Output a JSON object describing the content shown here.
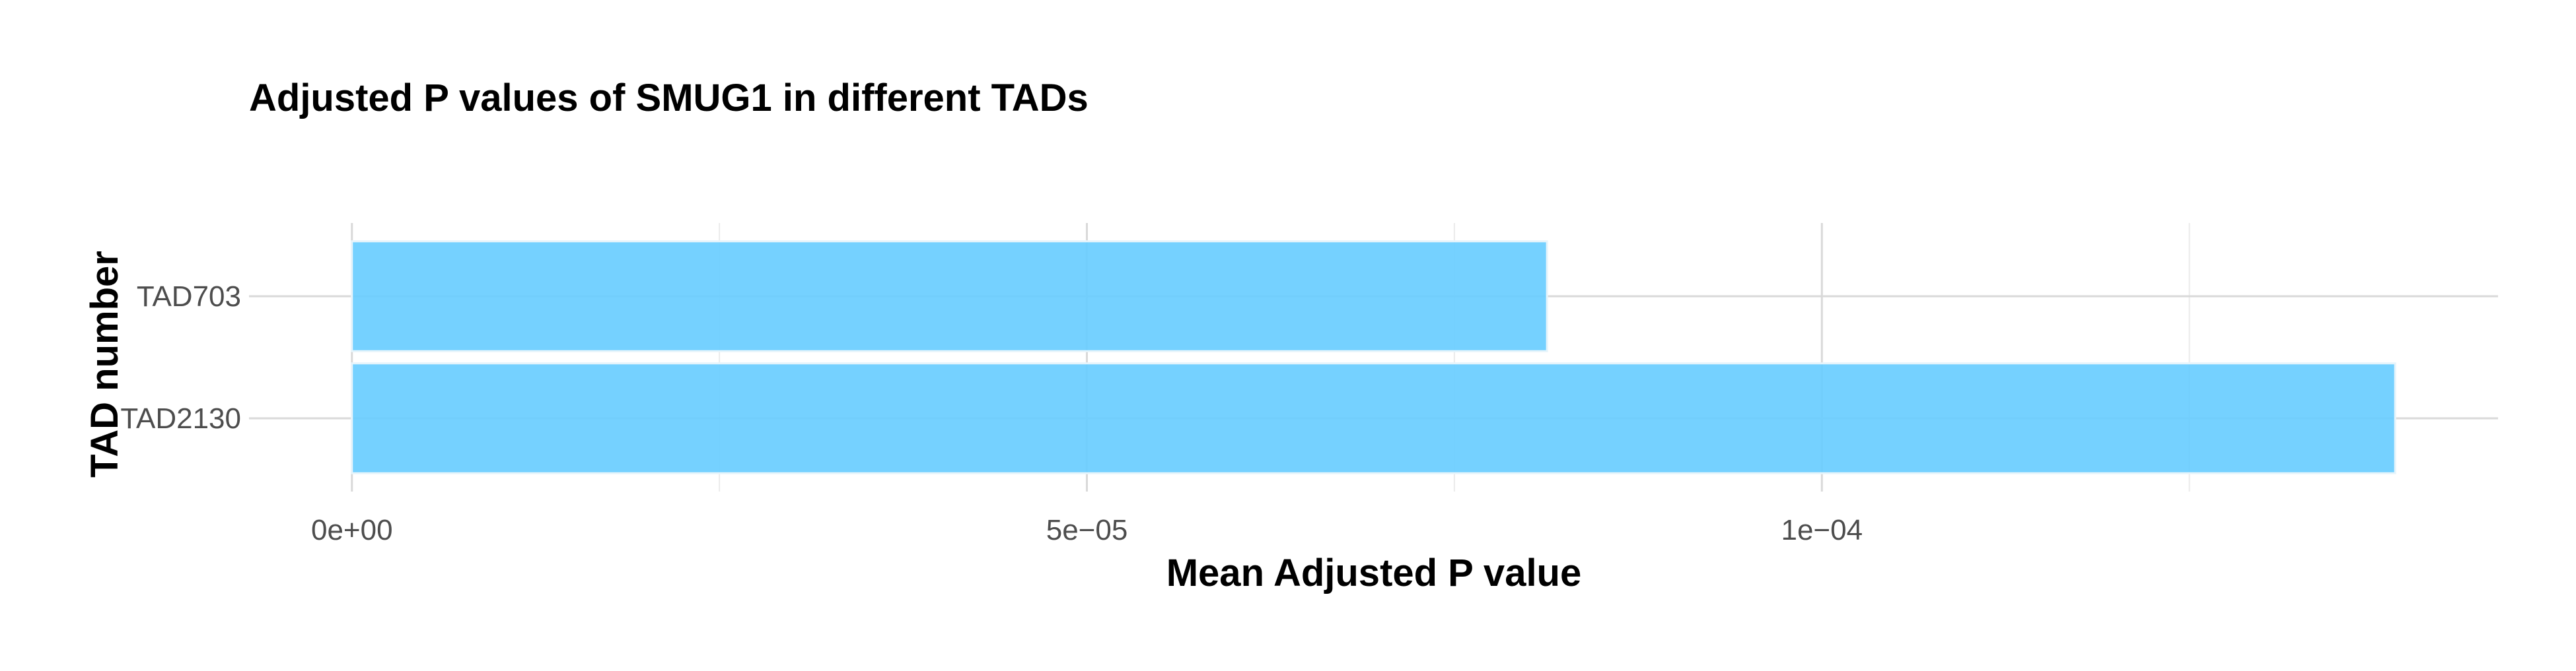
{
  "chart_data": {
    "type": "bar",
    "orientation": "horizontal",
    "title": "Adjusted P values of SMUG1 in different TADs",
    "xlabel": "Mean Adjusted P value",
    "ylabel": "TAD number",
    "categories": [
      "TAD703",
      "TAD2130"
    ],
    "values": [
      8.13e-05,
      0.000139
    ],
    "xlim": [
      -7e-06,
      0.000146
    ],
    "x_ticks": [
      0,
      5e-05,
      0.0001
    ],
    "x_tick_labels": [
      "0e+00",
      "5e−05",
      "1e−04"
    ],
    "x_minor_ticks": [
      2.5e-05,
      7.5e-05,
      0.000125
    ],
    "grid": true,
    "bar_color": "#66ccff",
    "legend": "none"
  }
}
